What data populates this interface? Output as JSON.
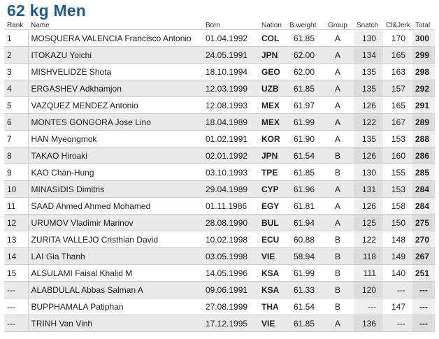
{
  "title": "62 kg Men",
  "columns": {
    "rank": "Rank",
    "name": "Name",
    "born": "Born",
    "nation": "Nation",
    "bweight": "B.weight",
    "group": "Group",
    "snatch": "Snatch",
    "cljerk": "Cl&Jerk",
    "total": "Total"
  },
  "rows": [
    {
      "rank": "1",
      "name": "MOSQUERA VALENCIA Francisco Antonio",
      "born": "01.04.1992",
      "nation": "COL",
      "bweight": "61.85",
      "group": "A",
      "snatch": "130",
      "cljerk": "170",
      "total": "300"
    },
    {
      "rank": "2",
      "name": "ITOKAZU Yoichi",
      "born": "24.05.1991",
      "nation": "JPN",
      "bweight": "62.00",
      "group": "A",
      "snatch": "134",
      "cljerk": "165",
      "total": "299"
    },
    {
      "rank": "3",
      "name": "MISHVELIDZE Shota",
      "born": "18.10.1994",
      "nation": "GEO",
      "bweight": "62.00",
      "group": "A",
      "snatch": "135",
      "cljerk": "163",
      "total": "298"
    },
    {
      "rank": "4",
      "name": "ERGASHEV Adkhamjon",
      "born": "12.03.1999",
      "nation": "UZB",
      "bweight": "61.85",
      "group": "A",
      "snatch": "135",
      "cljerk": "157",
      "total": "292"
    },
    {
      "rank": "5",
      "name": "VAZQUEZ MENDEZ Antonio",
      "born": "12.08.1993",
      "nation": "MEX",
      "bweight": "61.97",
      "group": "A",
      "snatch": "126",
      "cljerk": "165",
      "total": "291"
    },
    {
      "rank": "6",
      "name": "MONTES GONGORA Jose Lino",
      "born": "18.04.1989",
      "nation": "MEX",
      "bweight": "61.99",
      "group": "A",
      "snatch": "122",
      "cljerk": "167",
      "total": "289"
    },
    {
      "rank": "7",
      "name": "HAN Myeongmok",
      "born": "01.02.1991",
      "nation": "KOR",
      "bweight": "61.90",
      "group": "A",
      "snatch": "135",
      "cljerk": "153",
      "total": "288"
    },
    {
      "rank": "8",
      "name": "TAKAO Hiroaki",
      "born": "02.01.1992",
      "nation": "JPN",
      "bweight": "61.54",
      "group": "B",
      "snatch": "126",
      "cljerk": "160",
      "total": "286"
    },
    {
      "rank": "9",
      "name": "KAO Chan-Hung",
      "born": "03.10.1993",
      "nation": "TPE",
      "bweight": "61.85",
      "group": "B",
      "snatch": "130",
      "cljerk": "155",
      "total": "285"
    },
    {
      "rank": "10",
      "name": "MINASIDIS Dimitris",
      "born": "29.04.1989",
      "nation": "CYP",
      "bweight": "61.96",
      "group": "A",
      "snatch": "131",
      "cljerk": "153",
      "total": "284"
    },
    {
      "rank": "11",
      "name": "SAAD Ahmed Ahmed Mohamed",
      "born": "01.11.1986",
      "nation": "EGY",
      "bweight": "61.81",
      "group": "A",
      "snatch": "126",
      "cljerk": "158",
      "total": "284"
    },
    {
      "rank": "12",
      "name": "URUMOV Vladimir Marinov",
      "born": "28.08.1990",
      "nation": "BUL",
      "bweight": "61.94",
      "group": "A",
      "snatch": "125",
      "cljerk": "150",
      "total": "275"
    },
    {
      "rank": "13",
      "name": "ZURITA VALLEJO Cristhian David",
      "born": "10.02.1998",
      "nation": "ECU",
      "bweight": "60.88",
      "group": "B",
      "snatch": "122",
      "cljerk": "148",
      "total": "270"
    },
    {
      "rank": "14",
      "name": "LAI Gia Thanh",
      "born": "03.05.1998",
      "nation": "VIE",
      "bweight": "58.94",
      "group": "B",
      "snatch": "118",
      "cljerk": "149",
      "total": "267"
    },
    {
      "rank": "15",
      "name": "ALSULAMI Faisal Khalid M",
      "born": "14.05.1996",
      "nation": "KSA",
      "bweight": "61.99",
      "group": "B",
      "snatch": "111",
      "cljerk": "140",
      "total": "251"
    },
    {
      "rank": "---",
      "name": "ALABDULAL Abbas Salman A",
      "born": "09.06.1991",
      "nation": "KSA",
      "bweight": "61.33",
      "group": "B",
      "snatch": "120",
      "cljerk": "---",
      "total": "---"
    },
    {
      "rank": "---",
      "name": "BUPPHAMALA Patiphan",
      "born": "27.08.1999",
      "nation": "THA",
      "bweight": "61.54",
      "group": "B",
      "snatch": "---",
      "cljerk": "147",
      "total": "---"
    },
    {
      "rank": "---",
      "name": "TRINH Van Vinh",
      "born": "17.12.1995",
      "nation": "VIE",
      "bweight": "61.85",
      "group": "A",
      "snatch": "136",
      "cljerk": "---",
      "total": "---"
    }
  ]
}
